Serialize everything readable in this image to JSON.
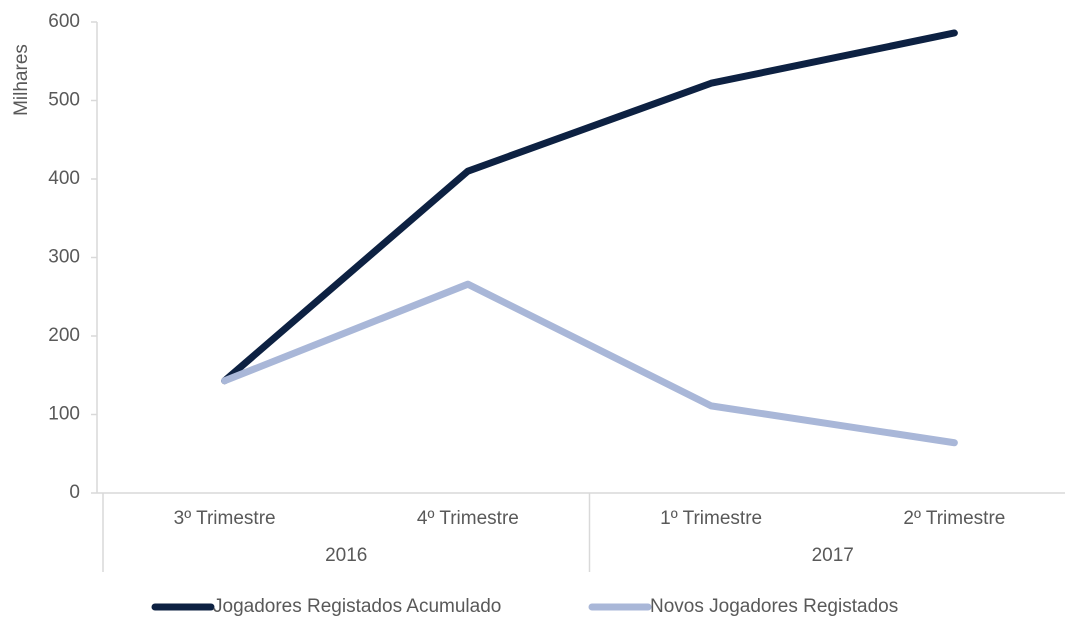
{
  "chart_data": {
    "type": "line",
    "y_label": "Milhares",
    "categories": [
      "3º Trimestre",
      "4º Trimestre",
      "1º Trimestre",
      "2º Trimestre"
    ],
    "category_groups": [
      "2016",
      "2017"
    ],
    "series": [
      {
        "name": "Jogadores Registados Acumulado",
        "color": "#0d2142",
        "values": [
          143,
          410,
          522,
          586
        ]
      },
      {
        "name": "Novos Jogadores Registados",
        "color": "#a9b7d8",
        "values": [
          143,
          266,
          111,
          64
        ]
      }
    ],
    "ylim": [
      0,
      600
    ],
    "yticks": [
      0,
      100,
      200,
      300,
      400,
      500,
      600
    ],
    "grid": false
  }
}
